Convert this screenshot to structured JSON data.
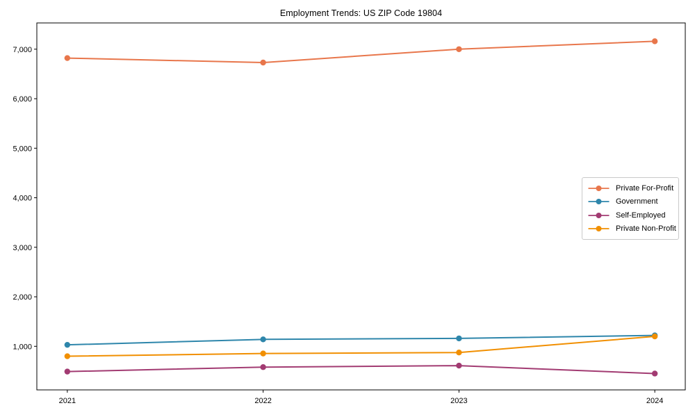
{
  "title": "Employment Trends: US ZIP Code 19804",
  "chart_data": {
    "type": "line",
    "title": "Employment Trends: US ZIP Code 19804",
    "x": [
      "2021",
      "2022",
      "2023",
      "2024"
    ],
    "series": [
      {
        "name": "Private For-Profit",
        "color": "#E8764B",
        "values": [
          6820,
          6730,
          7000,
          7160
        ]
      },
      {
        "name": "Government",
        "color": "#2E86AB",
        "values": [
          1030,
          1140,
          1160,
          1220
        ]
      },
      {
        "name": "Self-Employed",
        "color": "#A23B72",
        "values": [
          490,
          580,
          610,
          450
        ]
      },
      {
        "name": "Private Non-Profit",
        "color": "#F18F01",
        "values": [
          800,
          855,
          875,
          1200
        ]
      }
    ],
    "xlabel": "",
    "ylabel": "",
    "yticks": [
      1000,
      2000,
      3000,
      4000,
      5000,
      6000,
      7000
    ],
    "ytick_labels": [
      "1,000",
      "2,000",
      "3,000",
      "4,000",
      "5,000",
      "6,000",
      "7,000"
    ],
    "ylim": [
      120,
      7530
    ],
    "grid": false,
    "marker": "circle",
    "legend_position": "center-right"
  }
}
